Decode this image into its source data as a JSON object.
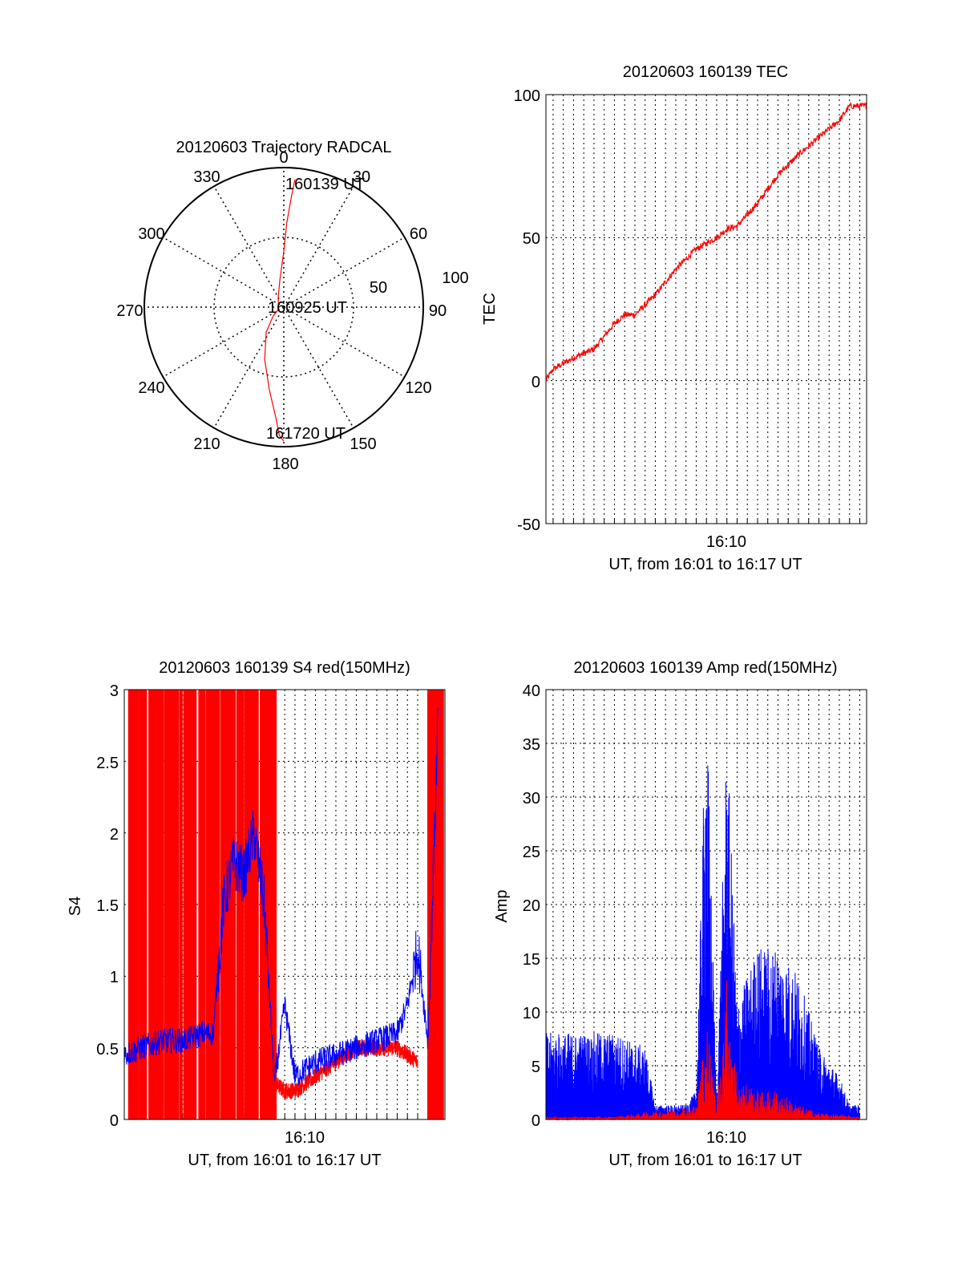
{
  "polar": {
    "title": "20120603 Trajectory RADCAL",
    "angle_labels": [
      "0",
      "30",
      "60",
      "90",
      "120",
      "150",
      "180",
      "210",
      "240",
      "270",
      "300",
      "330"
    ],
    "radial_labels": [
      "50",
      "100"
    ],
    "annotations": {
      "start": "160139 UT",
      "mid": "160925 UT",
      "end": "161720 UT"
    }
  },
  "tec": {
    "title": "20120603 160139 TEC",
    "ylabel": "TEC",
    "xtick": "16:10",
    "xlabel": "UT, from 16:01 to 16:17 UT",
    "yticks": [
      "100",
      "50",
      "0",
      "-50"
    ]
  },
  "s4": {
    "title": "20120603 160139 S4 red(150MHz)",
    "ylabel": "S4",
    "xtick": "16:10",
    "xlabel": "UT, from 16:01 to 16:17 UT",
    "yticks": [
      "3",
      "2.5",
      "2",
      "1.5",
      "1",
      "0.5",
      "0"
    ]
  },
  "amp": {
    "title": "20120603 160139 Amp red(150MHz)",
    "ylabel": "Amp",
    "xtick": "16:10",
    "xlabel": "UT, from 16:01 to 16:17 UT",
    "yticks": [
      "40",
      "35",
      "30",
      "25",
      "20",
      "15",
      "10",
      "5",
      "0"
    ]
  },
  "colors": {
    "red_series": "#ff0000",
    "blue_series": "#0000ff",
    "grid": "#000000"
  },
  "chart_data": [
    {
      "type": "line",
      "title": "20120603 Trajectory RADCAL",
      "polar": true,
      "r_ticks": [
        50,
        100
      ],
      "theta_ticks": [
        0,
        30,
        60,
        90,
        120,
        150,
        180,
        210,
        240,
        270,
        300,
        330
      ],
      "series": [
        {
          "name": "",
          "color": "#ff0000",
          "theta": [
            5,
            4,
            2,
            0,
            352,
            330,
            250,
            230,
            215,
            200,
            190,
            184,
            182,
            180
          ],
          "r": [
            92,
            80,
            60,
            40,
            20,
            8,
            4,
            10,
            22,
            40,
            60,
            80,
            92,
            96
          ]
        }
      ]
    },
    {
      "type": "line",
      "title": "20120603 160139 TEC",
      "ylabel": "TEC",
      "xlabel": "UT, from 16:01 to 16:17 UT",
      "xlim": [
        "16:01:39",
        "16:17:20"
      ],
      "ylim": [
        -50,
        100
      ],
      "series": [
        {
          "name": "",
          "color": "#ff0000",
          "x": [
            "16:01:39",
            "16:02:00",
            "16:02:30",
            "16:03:00",
            "16:04:00",
            "16:05:00",
            "16:05:30",
            "16:06:00",
            "16:07:00",
            "16:08:00",
            "16:09:00",
            "16:10:00",
            "16:10:30",
            "16:11:00",
            "16:12:00",
            "16:13:00",
            "16:14:00",
            "16:15:00",
            "16:16:00",
            "16:16:30",
            "16:17:00",
            "16:17:20"
          ],
          "y": [
            0,
            4,
            6,
            8,
            11,
            20,
            23,
            23,
            30,
            39,
            46,
            50,
            53,
            54,
            62,
            72,
            79,
            85,
            91,
            96,
            96,
            96
          ]
        }
      ]
    },
    {
      "type": "line",
      "title": "20120603 160139 S4 red(150MHz)",
      "ylabel": "S4",
      "xlabel": "UT, from 16:01 to 16:17 UT",
      "xlim": [
        "16:01:39",
        "16:17:20"
      ],
      "ylim": [
        0,
        3
      ],
      "series": [
        {
          "name": "",
          "color": "#ff0000",
          "x": [
            "16:09:00",
            "16:09:30",
            "16:10:00",
            "16:11:00",
            "16:12:00",
            "16:13:00",
            "16:14:00",
            "16:15:00",
            "16:16:00"
          ],
          "y": [
            0.25,
            0.2,
            0.2,
            0.3,
            0.4,
            0.5,
            0.5,
            0.5,
            0.4
          ]
        },
        {
          "name": "",
          "color": "#0000ff",
          "x": [
            "16:01:39",
            "16:02:30",
            "16:03:30",
            "16:04:30",
            "16:05:30",
            "16:06:00",
            "16:06:30",
            "16:07:00",
            "16:07:30",
            "16:08:00",
            "16:08:30",
            "16:09:00",
            "16:09:30",
            "16:10:00",
            "16:11:00",
            "16:12:00",
            "16:13:00",
            "16:14:00",
            "16:15:00",
            "16:15:30",
            "16:16:00",
            "16:16:30",
            "16:17:00"
          ],
          "y": [
            0.45,
            0.5,
            0.55,
            0.55,
            0.6,
            0.6,
            1.5,
            1.8,
            1.7,
            2.0,
            1.5,
            0.25,
            0.8,
            0.3,
            0.4,
            0.45,
            0.5,
            0.55,
            0.6,
            0.8,
            1.2,
            0.55,
            2.8
          ]
        }
      ]
    },
    {
      "type": "line",
      "title": "20120603 160139 Amp red(150MHz)",
      "ylabel": "Amp",
      "xlabel": "UT, from 16:01 to 16:17 UT",
      "xlim": [
        "16:01:39",
        "16:17:20"
      ],
      "ylim": [
        0,
        40
      ],
      "series": [
        {
          "name": "",
          "color": "#0000ff",
          "x": [
            "16:01:39",
            "16:03:00",
            "16:05:00",
            "16:06:30",
            "16:07:00",
            "16:08:30",
            "16:09:00",
            "16:09:30",
            "16:10:00",
            "16:10:30",
            "16:11:00",
            "16:12:00",
            "16:13:00",
            "16:14:00",
            "16:15:00",
            "16:16:00",
            "16:16:30",
            "16:17:00"
          ],
          "y": [
            6,
            6,
            6,
            5,
            1,
            1,
            2,
            30,
            1,
            27,
            8,
            12,
            12,
            10,
            5,
            3,
            1,
            1
          ]
        },
        {
          "name": "",
          "color": "#ff0000",
          "x": [
            "16:01:39",
            "16:05:00",
            "16:09:00",
            "16:09:30",
            "16:10:00",
            "16:10:30",
            "16:11:00",
            "16:12:00",
            "16:13:00",
            "16:14:00",
            "16:15:00",
            "16:17:00"
          ],
          "y": [
            0.2,
            0.2,
            1,
            7,
            1,
            10,
            3,
            2,
            2,
            1,
            0.5,
            0.2
          ]
        }
      ]
    }
  ]
}
